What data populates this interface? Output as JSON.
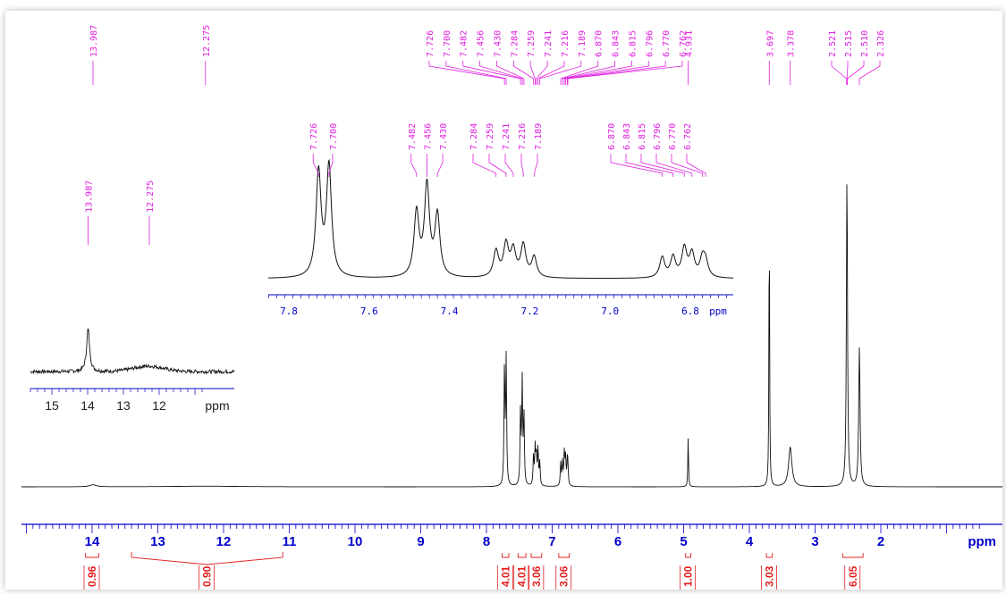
{
  "chart_data": {
    "type": "line",
    "title": "",
    "xlabel": "ppm",
    "x_direction": "reversed",
    "axis_color": "#0000cc",
    "peak_label_color": "#e020e0",
    "integral_color": "#e02020",
    "main": {
      "xlim": [
        15.2,
        0.4
      ],
      "ticks": [
        "14",
        "13",
        "12",
        "11",
        "10",
        "9",
        "8",
        "7",
        "6",
        "5",
        "4",
        "3",
        "2"
      ],
      "tick_values": [
        14,
        13,
        12,
        11,
        10,
        9,
        8,
        7,
        6,
        5,
        4,
        3,
        2
      ],
      "peak_labels": [
        {
          "ppm": 13.987,
          "text": "13.987"
        },
        {
          "ppm": 12.275,
          "text": "12.275"
        },
        {
          "ppm": 7.726,
          "text": "7.726"
        },
        {
          "ppm": 7.7,
          "text": "7.700"
        },
        {
          "ppm": 7.482,
          "text": "7.482"
        },
        {
          "ppm": 7.456,
          "text": "7.456"
        },
        {
          "ppm": 7.43,
          "text": "7.430"
        },
        {
          "ppm": 7.284,
          "text": "7.284"
        },
        {
          "ppm": 7.259,
          "text": "7.259"
        },
        {
          "ppm": 7.241,
          "text": "7.241"
        },
        {
          "ppm": 7.216,
          "text": "7.216"
        },
        {
          "ppm": 7.189,
          "text": "7.189"
        },
        {
          "ppm": 6.87,
          "text": "6.870"
        },
        {
          "ppm": 6.843,
          "text": "6.843"
        },
        {
          "ppm": 6.815,
          "text": "6.815"
        },
        {
          "ppm": 6.796,
          "text": "6.796"
        },
        {
          "ppm": 6.77,
          "text": "6.770"
        },
        {
          "ppm": 6.762,
          "text": "6.762"
        },
        {
          "ppm": 4.931,
          "text": "4.931"
        },
        {
          "ppm": 3.697,
          "text": "3.697"
        },
        {
          "ppm": 3.378,
          "text": "3.378"
        },
        {
          "ppm": 2.521,
          "text": "2.521"
        },
        {
          "ppm": 2.515,
          "text": "2.515"
        },
        {
          "ppm": 2.51,
          "text": "2.510"
        },
        {
          "ppm": 2.326,
          "text": "2.326"
        }
      ],
      "peaks": [
        {
          "ppm": 13.987,
          "h": 0.006,
          "w": 0.06
        },
        {
          "ppm": 12.275,
          "h": 0.002,
          "w": 0.6
        },
        {
          "ppm": 7.726,
          "h": 0.36,
          "w": 0.008
        },
        {
          "ppm": 7.7,
          "h": 0.38,
          "w": 0.008
        },
        {
          "ppm": 7.482,
          "h": 0.22,
          "w": 0.008
        },
        {
          "ppm": 7.456,
          "h": 0.31,
          "w": 0.008
        },
        {
          "ppm": 7.43,
          "h": 0.21,
          "w": 0.008
        },
        {
          "ppm": 7.284,
          "h": 0.09,
          "w": 0.008
        },
        {
          "ppm": 7.259,
          "h": 0.11,
          "w": 0.008
        },
        {
          "ppm": 7.241,
          "h": 0.09,
          "w": 0.008
        },
        {
          "ppm": 7.216,
          "h": 0.11,
          "w": 0.008
        },
        {
          "ppm": 7.189,
          "h": 0.07,
          "w": 0.008
        },
        {
          "ppm": 6.87,
          "h": 0.07,
          "w": 0.008
        },
        {
          "ppm": 6.843,
          "h": 0.07,
          "w": 0.008
        },
        {
          "ppm": 6.815,
          "h": 0.1,
          "w": 0.008
        },
        {
          "ppm": 6.796,
          "h": 0.08,
          "w": 0.008
        },
        {
          "ppm": 6.77,
          "h": 0.06,
          "w": 0.008
        },
        {
          "ppm": 6.762,
          "h": 0.05,
          "w": 0.008
        },
        {
          "ppm": 4.931,
          "h": 0.15,
          "w": 0.006
        },
        {
          "ppm": 3.697,
          "h": 0.83,
          "w": 0.006
        },
        {
          "ppm": 3.378,
          "h": 0.12,
          "w": 0.03
        },
        {
          "ppm": 2.515,
          "h": 0.95,
          "w": 0.01
        },
        {
          "ppm": 2.326,
          "h": 0.42,
          "w": 0.012
        }
      ],
      "integrals": [
        {
          "from": 14.1,
          "to": 13.9,
          "value": "0.96"
        },
        {
          "from": 13.4,
          "to": 11.1,
          "value": "0.90"
        },
        {
          "from": 7.76,
          "to": 7.66,
          "value": "4.01"
        },
        {
          "from": 7.52,
          "to": 7.4,
          "value": "4.01"
        },
        {
          "from": 7.32,
          "to": 7.16,
          "value": "3.06"
        },
        {
          "from": 6.9,
          "to": 6.74,
          "value": "3.06"
        },
        {
          "from": 4.97,
          "to": 4.89,
          "value": "1.00"
        },
        {
          "from": 3.74,
          "to": 3.65,
          "value": "3.03"
        },
        {
          "from": 2.58,
          "to": 2.27,
          "value": "6.05"
        }
      ]
    },
    "inset_aromatic": {
      "xlim": [
        7.85,
        6.7
      ],
      "ticks": [
        "7.8",
        "7.6",
        "7.4",
        "7.2",
        "7.0",
        "6.8"
      ],
      "tick_values": [
        7.8,
        7.6,
        7.4,
        7.2,
        7.0,
        6.8
      ],
      "xlabel": "ppm",
      "labels": [
        "7.726",
        "7.700",
        "7.482",
        "7.456",
        "7.430",
        "7.284",
        "7.259",
        "7.241",
        "7.216",
        "7.189",
        "6.870",
        "6.843",
        "6.815",
        "6.796",
        "6.770",
        "6.762"
      ],
      "label_ppm": [
        7.726,
        7.7,
        7.482,
        7.456,
        7.43,
        7.284,
        7.259,
        7.241,
        7.216,
        7.189,
        6.87,
        6.843,
        6.815,
        6.796,
        6.77,
        6.762
      ]
    },
    "inset_acid": {
      "xlim": [
        15.6,
        10.8
      ],
      "ticks": [
        "15",
        "14",
        "13",
        "12"
      ],
      "tick_values": [
        15,
        14,
        13,
        12
      ],
      "xlabel": "ppm",
      "labels": [
        "13.987",
        "12.275"
      ],
      "label_ppm": [
        13.987,
        12.275
      ]
    }
  }
}
